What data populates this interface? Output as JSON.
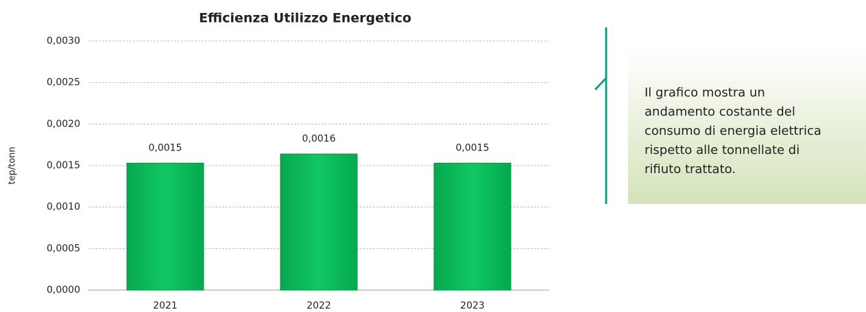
{
  "chart_data": {
    "type": "bar",
    "title": "Efficienza Utilizzo Energetico",
    "y_label": "tep/tonn",
    "categories": [
      "2021",
      "2022",
      "2023"
    ],
    "values": [
      0.00153,
      0.00164,
      0.00153
    ],
    "value_labels": [
      "0,0015",
      "0,0016",
      "0,0015"
    ],
    "color": "#0abf5b",
    "ylim": [
      0,
      0.003
    ],
    "yticks": [
      {
        "value": 0,
        "label": "0,0000"
      },
      {
        "value": 0.0005,
        "label": "0,0005"
      },
      {
        "value": 0.001,
        "label": "0,0010"
      },
      {
        "value": 0.0015,
        "label": "0,0015"
      },
      {
        "value": 0.002,
        "label": "0,0020"
      },
      {
        "value": 0.0025,
        "label": "0,0025"
      },
      {
        "value": 0.003,
        "label": "0,0030"
      }
    ],
    "grid": true
  },
  "annotation": {
    "lines": [
      "Il grafico mostra un",
      "andamento costante del",
      "consumo di energia elettrica",
      "rispetto alle tonnellate di",
      "rifiuto trattato."
    ]
  }
}
